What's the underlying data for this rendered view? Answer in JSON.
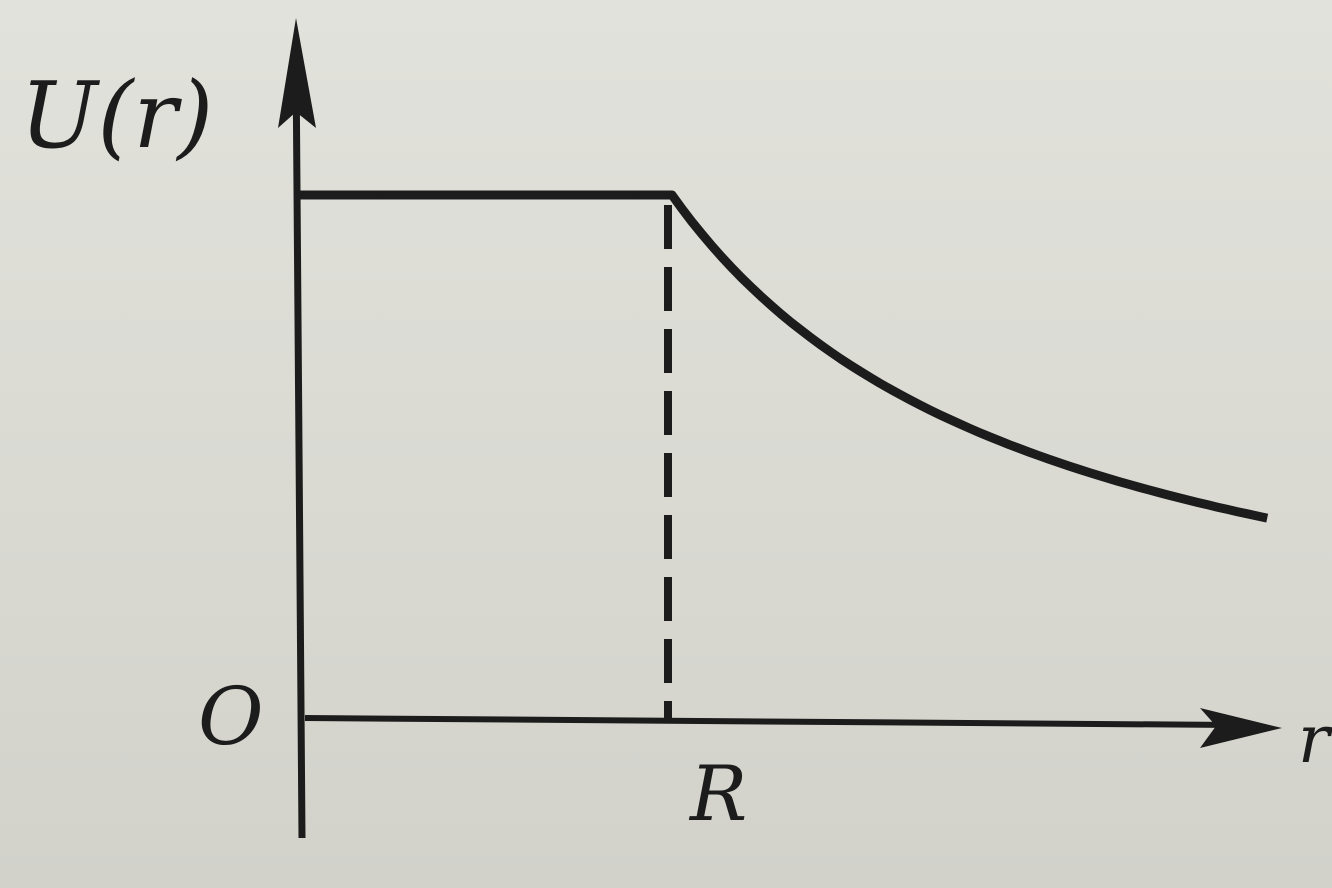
{
  "chart_data": {
    "type": "line",
    "ylabel": "U(r)",
    "xlabel": "r",
    "origin_label": "O",
    "marked_x_label": "R",
    "x": [
      0,
      1,
      1.1,
      1.25,
      1.5,
      1.75,
      2.0,
      2.2,
      2.5,
      2.6
    ],
    "y": [
      1,
      1,
      0.909,
      0.8,
      0.667,
      0.571,
      0.5,
      0.455,
      0.4,
      0.385
    ],
    "xlim": [
      0,
      2.6
    ],
    "ylim": [
      0,
      1
    ],
    "marked_x": 1,
    "grid": false,
    "legend": false
  }
}
